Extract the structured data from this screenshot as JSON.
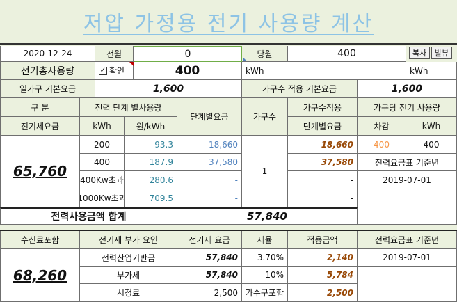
{
  "title": "저압 가정용 전기 사용량 계산",
  "top": {
    "date": "2020-12-24",
    "prev_label": "전월",
    "prev_value": "0",
    "curr_label": "당월",
    "curr_value": "400",
    "copy_btn": "복사",
    "send_btn": "발뷰"
  },
  "row2": {
    "label": "전기총사용량",
    "check_label": "확인",
    "check_mark": "✓",
    "value": "400",
    "unit1": "kWh",
    "unit2": "kWh"
  },
  "row3": {
    "label": "일가구 기본요금",
    "value": "1,600",
    "label2": "가구수 적용 기본요금",
    "value2": "1,600"
  },
  "header": {
    "gubun": "구       분",
    "step_usage": "전력 단계 별사용량",
    "step_fee": "단계별요금",
    "households": "가구수",
    "hh_applied": "가구수적용",
    "per_hh_usage": "가구당 전기 사용량",
    "elec_fee": "전기세요금",
    "kwh": "kWh",
    "won_kwh": "원/kWh",
    "step_fee2": "단계별요금",
    "diff": "차감",
    "kwh2": "kWh"
  },
  "total_fee": "65,760",
  "steps": [
    {
      "kwh": "200",
      "rate": "93.3",
      "fee": "18,660",
      "applied": "18,660"
    },
    {
      "kwh": "400",
      "rate": "187.9",
      "fee": "37,580",
      "applied": "37,580"
    },
    {
      "kwh": "400Kw초과",
      "rate": "280.6",
      "fee": "-",
      "applied": "-"
    },
    {
      "kwh": "1000Kw초과",
      "rate": "709.5",
      "fee": "-",
      "applied": "-"
    }
  ],
  "households_value": "1",
  "diff_value": "400",
  "kwh_value": "400",
  "rate_table_label": "전력요금표 기준년",
  "rate_table_date": "2019-07-01",
  "sum": {
    "label": "전력사용금액 합계",
    "value": "57,840"
  },
  "lower": {
    "h1": "수신료포함",
    "h2": "전기세 부가 요인",
    "h3": "전기세 요금",
    "h4": "세율",
    "h5": "적용금액",
    "h6": "전력요금표 기준년",
    "total": "68,260",
    "date": "2019-07-01",
    "rows": [
      {
        "name": "전력산업기반금",
        "fee": "57,840",
        "rate": "3.70%",
        "applied": "2,140"
      },
      {
        "name": "부가세",
        "fee": "57,840",
        "rate": "10%",
        "applied": "5,784"
      },
      {
        "name": "시청료",
        "fee": "2,500",
        "rate": "가수구포함",
        "applied": "2,500"
      }
    ]
  }
}
